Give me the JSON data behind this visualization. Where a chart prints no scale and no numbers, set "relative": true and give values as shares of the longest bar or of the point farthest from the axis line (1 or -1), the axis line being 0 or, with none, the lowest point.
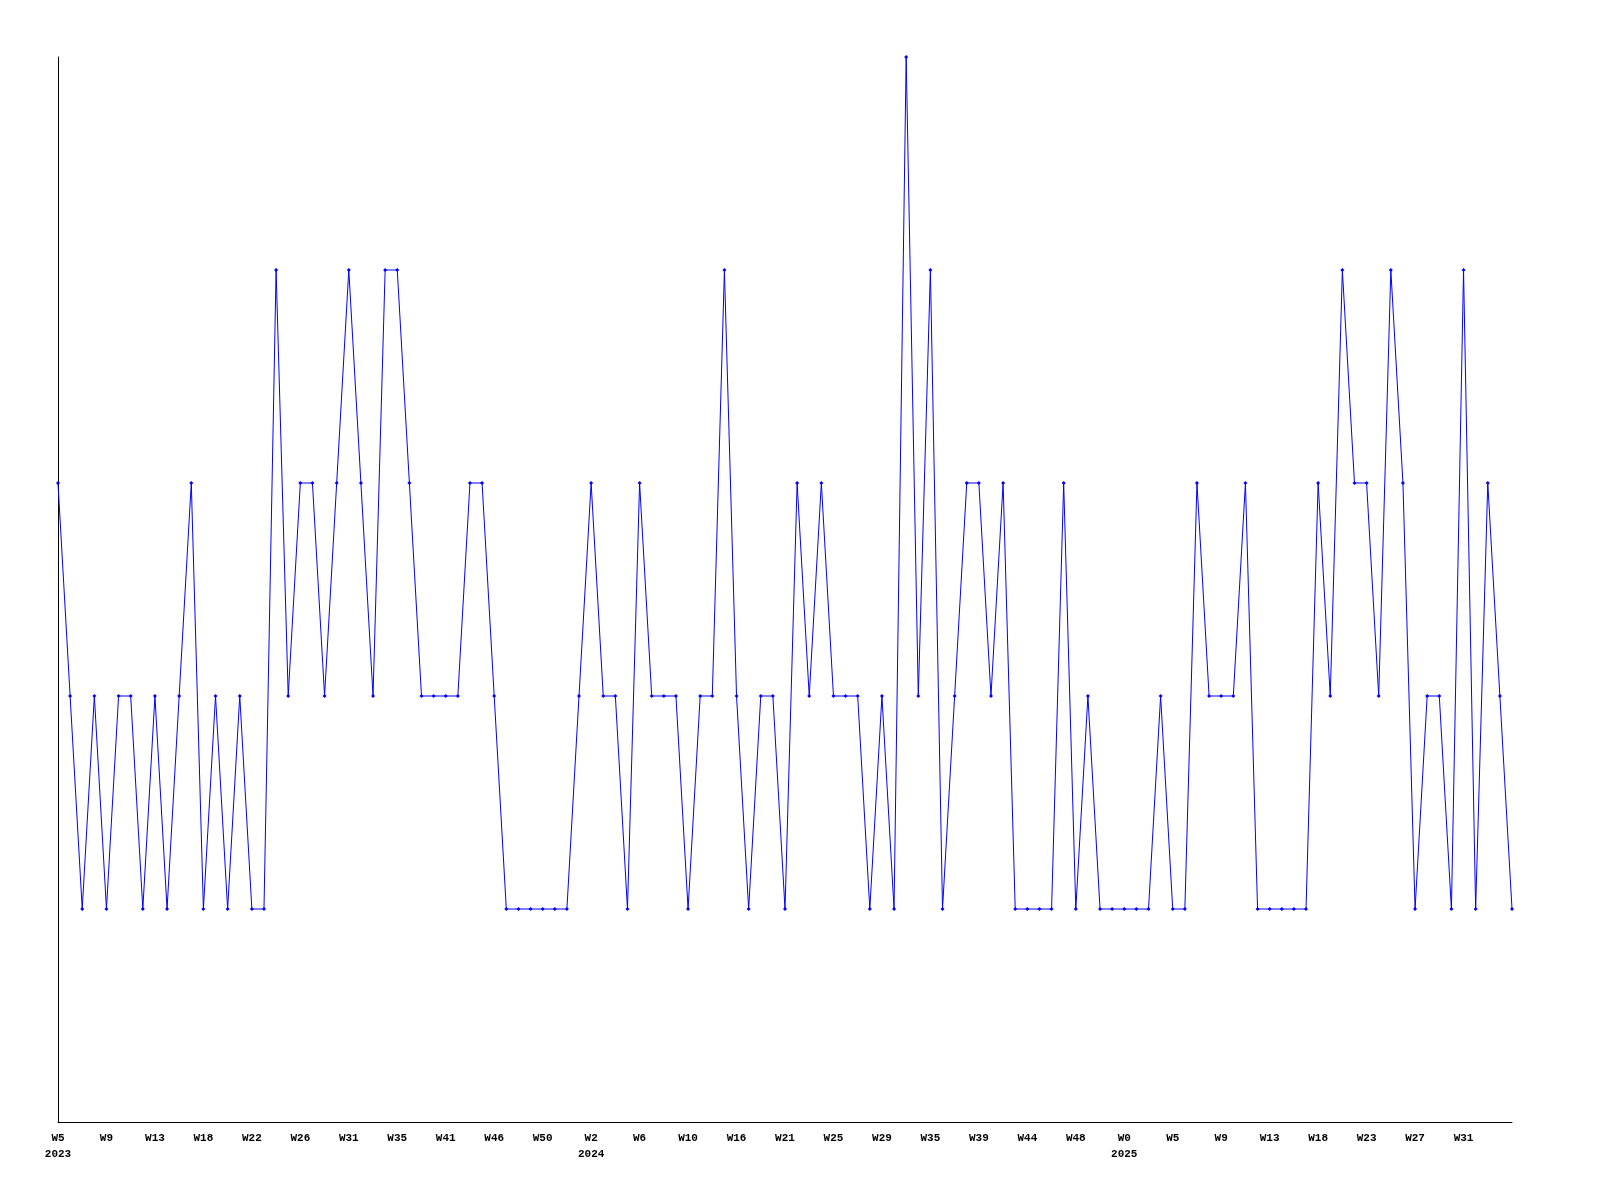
{
  "chart_data": {
    "type": "line",
    "relative": true,
    "marker": "diamond",
    "line_style": "solid",
    "grid": false,
    "categories": [
      "W5\n2023",
      null,
      null,
      null,
      "W9",
      null,
      null,
      null,
      "W13",
      null,
      null,
      null,
      "W18",
      null,
      null,
      null,
      "W22",
      null,
      null,
      null,
      "W26",
      null,
      null,
      null,
      "W31",
      null,
      null,
      null,
      "W35",
      null,
      null,
      null,
      "W41",
      null,
      null,
      null,
      "W46",
      null,
      null,
      null,
      "W50",
      null,
      null,
      null,
      "W2\n2024",
      null,
      null,
      null,
      "W6",
      null,
      null,
      null,
      "W10",
      null,
      null,
      null,
      "W16",
      null,
      null,
      null,
      "W21",
      null,
      null,
      null,
      "W25",
      null,
      null,
      null,
      "W29",
      null,
      null,
      null,
      "W35",
      null,
      null,
      null,
      "W39",
      null,
      null,
      null,
      "W44",
      null,
      null,
      null,
      "W48",
      null,
      null,
      null,
      "W0\n2025",
      null,
      null,
      null,
      "W5",
      null,
      null,
      null,
      "W9",
      null,
      null,
      null,
      "W13",
      null,
      null,
      null,
      "W18",
      null,
      null,
      null,
      "W23",
      null,
      null,
      null,
      "W27",
      null,
      null,
      null,
      "W31",
      null,
      null,
      null,
      null
    ],
    "series": [
      {
        "color": "#0000ff",
        "values": [
          0.6,
          0.4,
          0.2,
          0.4,
          0.2,
          0.4,
          0.4,
          0.2,
          0.4,
          0.2,
          0.4,
          0.6,
          0.2,
          0.4,
          0.2,
          0.4,
          0.2,
          0.2,
          0.8,
          0.4,
          0.6,
          0.6,
          0.4,
          0.6,
          0.8,
          0.6,
          0.4,
          0.8,
          0.8,
          0.6,
          0.4,
          0.4,
          0.4,
          0.4,
          0.6,
          0.6,
          0.4,
          0.2,
          0.2,
          0.2,
          0.2,
          0.2,
          0.2,
          0.4,
          0.6,
          0.4,
          0.4,
          0.2,
          0.6,
          0.4,
          0.4,
          0.4,
          0.2,
          0.4,
          0.4,
          0.8,
          0.4,
          0.2,
          0.4,
          0.4,
          0.2,
          0.6,
          0.4,
          0.6,
          0.4,
          0.4,
          0.4,
          0.2,
          0.4,
          0.2,
          1,
          0.4,
          0.8,
          0.2,
          0.4,
          0.6,
          0.6,
          0.4,
          0.6,
          0.2,
          0.2,
          0.2,
          0.2,
          0.6,
          0.2,
          0.4,
          0.2,
          0.2,
          0.2,
          0.2,
          0.2,
          0.4,
          0.2,
          0.2,
          0.6,
          0.4,
          0.4,
          0.4,
          0.6,
          0.2,
          0.2,
          0.2,
          0.2,
          0.2,
          0.6,
          0.4,
          0.8,
          0.6,
          0.6,
          0.4,
          0.8,
          0.6,
          0.2,
          0.4,
          0.4,
          0.2,
          0.8,
          0.2,
          0.6,
          0.4,
          0.2
        ]
      }
    ]
  }
}
